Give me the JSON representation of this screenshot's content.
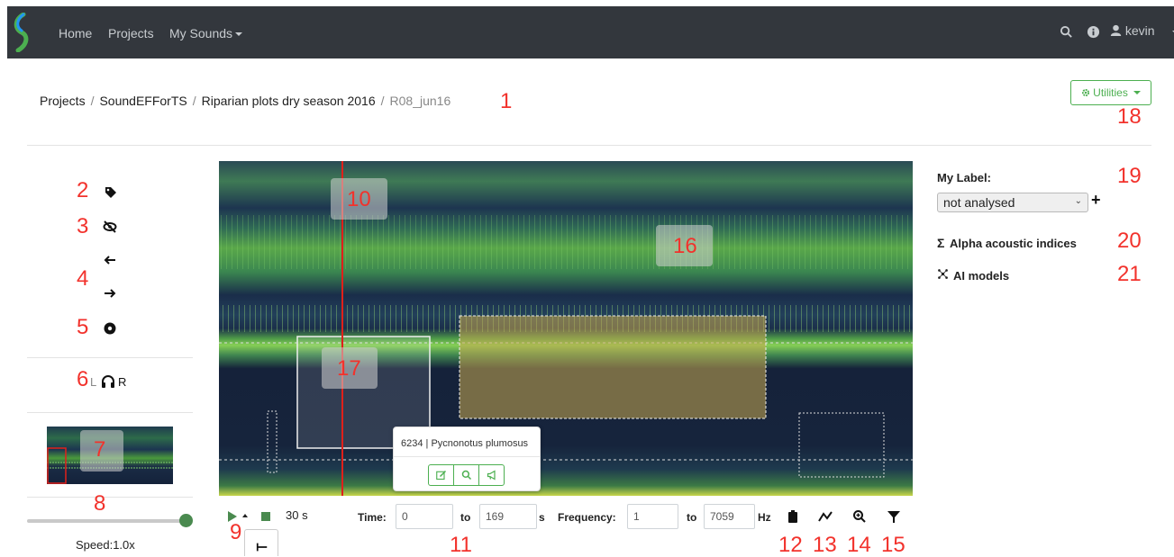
{
  "nav": {
    "home": "Home",
    "projects": "Projects",
    "my_sounds": "My Sounds",
    "user": "kevin"
  },
  "breadcrumb": {
    "items": [
      "Projects",
      "SoundEFForTS",
      "Riparian plots dry season 2016"
    ],
    "current": "R08_jun16"
  },
  "utilities_label": "Utilities",
  "annotations": [
    "1",
    "2",
    "3",
    "4",
    "5",
    "6",
    "7",
    "8",
    "9",
    "10",
    "11",
    "12",
    "13",
    "14",
    "15",
    "16",
    "17",
    "18",
    "19",
    "20",
    "21"
  ],
  "channel": {
    "left": "L",
    "right": "R"
  },
  "playback": {
    "duration": "30 s",
    "speed_label": "Speed:1.0x",
    "speed_value": 1.0
  },
  "range": {
    "time_label": "Time:",
    "time_from": "0",
    "to_label": "to",
    "time_to": "169",
    "time_unit": "s",
    "freq_label": "Frequency:",
    "freq_from": "1",
    "freq_to": "7059",
    "freq_unit": "Hz"
  },
  "popup": {
    "title": "6234 | Pycnonotus plumosus"
  },
  "right_panel": {
    "my_label": "My Label:",
    "label_value": "not analysed",
    "add": "+",
    "alpha": "Alpha acoustic indices",
    "ai": "AI models",
    "sigma": "Σ"
  },
  "colors": {
    "accent": "#4caf50",
    "annotation": "#f2322c",
    "navbar": "#33373d",
    "playhead": "#e0201a"
  },
  "icons": {
    "tag": "tag-icon",
    "hide": "eye-slash-icon",
    "prev": "arrow-left-icon",
    "next": "arrow-right-icon",
    "record": "record-icon",
    "headphones": "headphones-icon",
    "play": "play-icon",
    "stop": "stop-icon",
    "clipboard": "clipboard-icon",
    "regression": "chart-line-icon",
    "zoom": "zoom-icon",
    "filter": "filter-icon",
    "edit": "edit-icon",
    "search": "search-icon",
    "bullhorn": "bullhorn-icon",
    "gear": "gear-icon",
    "ai": "network-icon"
  }
}
